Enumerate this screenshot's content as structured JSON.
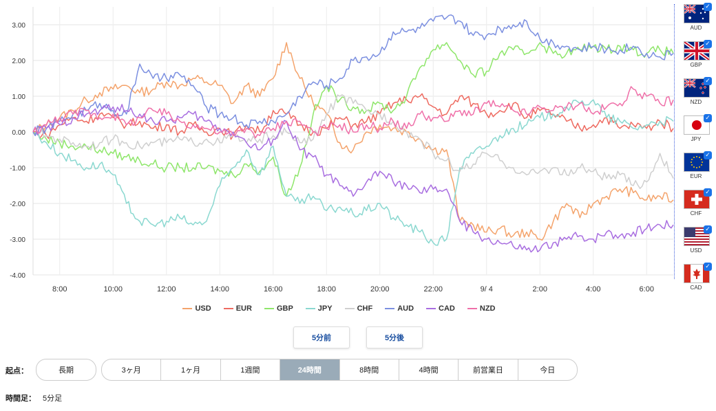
{
  "chart_data": {
    "type": "line",
    "title": "",
    "xlabel": "",
    "ylabel": "",
    "ylim": [
      -4,
      3.5
    ],
    "yticks": [
      "3.00",
      "2.00",
      "1.00",
      "0.00",
      "-1.00",
      "-2.00",
      "-3.00",
      "-4.00"
    ],
    "xticks": [
      "8:00",
      "10:00",
      "12:00",
      "14:00",
      "16:00",
      "18:00",
      "20:00",
      "22:00",
      "9/ 4",
      "2:00",
      "4:00",
      "6:00"
    ],
    "x": [
      7.0,
      7.5,
      8.0,
      8.5,
      9.0,
      9.5,
      10.0,
      10.5,
      11.0,
      11.5,
      12.0,
      12.5,
      13.0,
      13.5,
      14.0,
      14.5,
      15.0,
      15.5,
      16.0,
      16.5,
      17.0,
      17.5,
      18.0,
      18.5,
      19.0,
      19.5,
      20.0,
      20.5,
      21.0,
      21.5,
      22.0,
      22.5,
      23.0,
      23.5,
      24.0,
      24.5,
      25.0,
      25.5,
      26.0,
      26.5,
      27.0,
      27.5,
      28.0,
      28.5,
      29.0,
      29.5,
      30.0,
      30.5,
      31.0
    ],
    "series": [
      {
        "name": "USD",
        "color": "#f4a36b",
        "values": [
          0.0,
          0.2,
          0.4,
          0.6,
          0.9,
          1.1,
          1.2,
          1.3,
          1.1,
          1.2,
          1.4,
          1.3,
          1.5,
          1.4,
          1.3,
          0.8,
          1.3,
          1.0,
          1.5,
          2.5,
          1.5,
          0.8,
          0.5,
          -0.3,
          -0.5,
          0.0,
          0.2,
          0.1,
          0.0,
          -0.2,
          -0.5,
          -0.5,
          -2.5,
          -2.6,
          -2.8,
          -2.7,
          -2.9,
          -2.8,
          -3.0,
          -2.5,
          -2.0,
          -2.4,
          -2.0,
          -1.8,
          -1.6,
          -1.7,
          -1.9,
          -1.8,
          -1.9
        ]
      },
      {
        "name": "EUR",
        "color": "#ee6a60",
        "values": [
          0.0,
          -0.1,
          0.2,
          0.4,
          0.3,
          0.5,
          0.4,
          0.2,
          0.3,
          0.1,
          0.2,
          0.0,
          0.2,
          0.0,
          0.1,
          -0.1,
          0.2,
          0.0,
          0.6,
          0.5,
          0.2,
          0.0,
          0.1,
          0.4,
          0.2,
          0.3,
          0.5,
          0.8,
          0.9,
          1.0,
          0.7,
          0.5,
          1.0,
          0.8,
          0.5,
          0.6,
          0.8,
          0.4,
          0.6,
          0.5,
          0.3,
          0.1,
          0.2,
          0.4,
          0.1,
          0.2,
          0.1,
          0.3,
          0.1
        ]
      },
      {
        "name": "GBP",
        "color": "#8ee66a",
        "values": [
          0.0,
          -0.2,
          -0.3,
          -0.4,
          -0.4,
          -0.5,
          -0.6,
          -0.7,
          -0.8,
          -0.9,
          -1.0,
          -1.0,
          -1.0,
          -1.0,
          -1.1,
          -1.2,
          -0.9,
          -1.1,
          -0.7,
          -1.8,
          -1.0,
          0.5,
          1.3,
          0.9,
          0.7,
          0.6,
          0.8,
          0.6,
          1.0,
          1.8,
          2.3,
          2.5,
          2.0,
          1.6,
          1.7,
          2.2,
          2.3,
          2.2,
          2.5,
          2.2,
          2.2,
          2.3,
          2.4,
          2.3,
          2.4,
          2.3,
          2.2,
          2.3,
          2.2
        ]
      },
      {
        "name": "JPY",
        "color": "#8ad8d0",
        "values": [
          0.0,
          -0.3,
          -0.6,
          -0.8,
          -1.0,
          -0.9,
          -1.2,
          -2.0,
          -2.5,
          -2.6,
          -2.5,
          -2.4,
          -2.6,
          -2.5,
          -1.5,
          -1.0,
          -0.5,
          -1.2,
          -0.4,
          -1.8,
          -2.0,
          -1.8,
          -2.2,
          -2.1,
          -2.3,
          -2.2,
          -2.0,
          -2.4,
          -2.6,
          -2.8,
          -3.1,
          -3.0,
          -1.0,
          -0.6,
          -0.4,
          -0.1,
          0.1,
          0.2,
          0.4,
          0.5,
          0.7,
          0.8,
          0.9,
          0.4,
          0.3,
          0.1,
          0.2,
          0.3,
          0.3
        ]
      },
      {
        "name": "CHF",
        "color": "#cfcfcf",
        "values": [
          0.0,
          -0.1,
          -0.2,
          -0.3,
          -0.4,
          -0.3,
          -0.2,
          -0.3,
          -0.4,
          -0.3,
          -0.3,
          -0.2,
          -0.3,
          -0.2,
          -0.3,
          -0.1,
          -0.3,
          -0.2,
          -0.1,
          0.0,
          -0.3,
          -0.2,
          0.5,
          1.0,
          0.8,
          0.6,
          0.5,
          0.3,
          0.0,
          -0.2,
          -0.6,
          -0.8,
          -1.1,
          -0.9,
          -0.6,
          -0.8,
          -1.0,
          -1.2,
          -1.1,
          -1.0,
          -1.2,
          -1.0,
          -1.1,
          -1.3,
          -1.2,
          -1.5,
          -1.4,
          -0.6,
          -1.3
        ]
      },
      {
        "name": "AUD",
        "color": "#7b8fe0",
        "values": [
          0.0,
          0.1,
          0.3,
          0.5,
          0.6,
          0.8,
          0.6,
          0.5,
          1.9,
          1.5,
          1.5,
          1.6,
          1.3,
          0.7,
          0.5,
          0.4,
          0.2,
          0.3,
          0.3,
          0.5,
          1.0,
          1.4,
          1.3,
          1.5,
          2.0,
          2.1,
          2.2,
          2.8,
          2.8,
          2.9,
          3.1,
          3.2,
          3.1,
          2.7,
          2.7,
          2.9,
          3.0,
          3.1,
          2.6,
          2.5,
          2.4,
          2.3,
          2.4,
          2.3,
          2.3,
          2.4,
          2.2,
          2.1,
          2.2
        ]
      },
      {
        "name": "CAD",
        "color": "#a86de0",
        "values": [
          0.0,
          0.1,
          0.2,
          0.4,
          0.5,
          0.6,
          0.7,
          0.6,
          0.5,
          0.3,
          0.3,
          0.4,
          0.5,
          0.3,
          0.1,
          0.0,
          -0.3,
          -0.5,
          -0.2,
          0.3,
          -0.5,
          -0.7,
          -1.2,
          -1.5,
          -1.8,
          -1.4,
          -1.1,
          -1.4,
          -1.5,
          -1.7,
          -1.6,
          -1.6,
          -2.5,
          -2.8,
          -3.0,
          -3.1,
          -3.2,
          -3.3,
          -3.3,
          -3.1,
          -3.0,
          -2.9,
          -3.0,
          -2.8,
          -2.9,
          -2.8,
          -2.7,
          -2.6,
          -2.6
        ]
      },
      {
        "name": "NZD",
        "color": "#ef6fa8",
        "values": [
          0.0,
          0.2,
          0.4,
          0.5,
          0.6,
          0.4,
          0.5,
          0.2,
          0.4,
          0.6,
          0.5,
          0.3,
          0.2,
          0.1,
          0.0,
          -0.1,
          0.1,
          -0.1,
          0.1,
          0.3,
          0.3,
          0.0,
          0.1,
          0.2,
          0.0,
          0.2,
          0.1,
          0.3,
          0.1,
          0.5,
          0.4,
          0.3,
          0.6,
          0.5,
          0.8,
          0.7,
          0.6,
          0.5,
          0.7,
          0.6,
          0.7,
          0.8,
          0.5,
          0.7,
          0.8,
          1.2,
          1.0,
          0.8,
          0.9
        ]
      }
    ],
    "grid": true,
    "legend": "bottom"
  },
  "flags": [
    {
      "code": "AUD",
      "icon": "australia-flag-icon",
      "checked": true
    },
    {
      "code": "GBP",
      "icon": "uk-flag-icon",
      "checked": true
    },
    {
      "code": "NZD",
      "icon": "new-zealand-flag-icon",
      "checked": true
    },
    {
      "code": "JPY",
      "icon": "japan-flag-icon",
      "checked": true
    },
    {
      "code": "EUR",
      "icon": "eu-flag-icon",
      "checked": true
    },
    {
      "code": "CHF",
      "icon": "switzerland-flag-icon",
      "checked": true
    },
    {
      "code": "USD",
      "icon": "usa-flag-icon",
      "checked": true
    },
    {
      "code": "CAD",
      "icon": "canada-flag-icon",
      "checked": true
    }
  ],
  "nav": {
    "prev_label": "5分前",
    "next_label": "5分後"
  },
  "origin": {
    "label": "起点：",
    "long_label": "長期",
    "options": [
      "3ヶ月",
      "1ヶ月",
      "1週間",
      "24時間",
      "8時間",
      "4時間",
      "前営業日",
      "今日"
    ],
    "selected": "24時間"
  },
  "timeframe": {
    "label": "時間足：",
    "value": "5分足"
  }
}
